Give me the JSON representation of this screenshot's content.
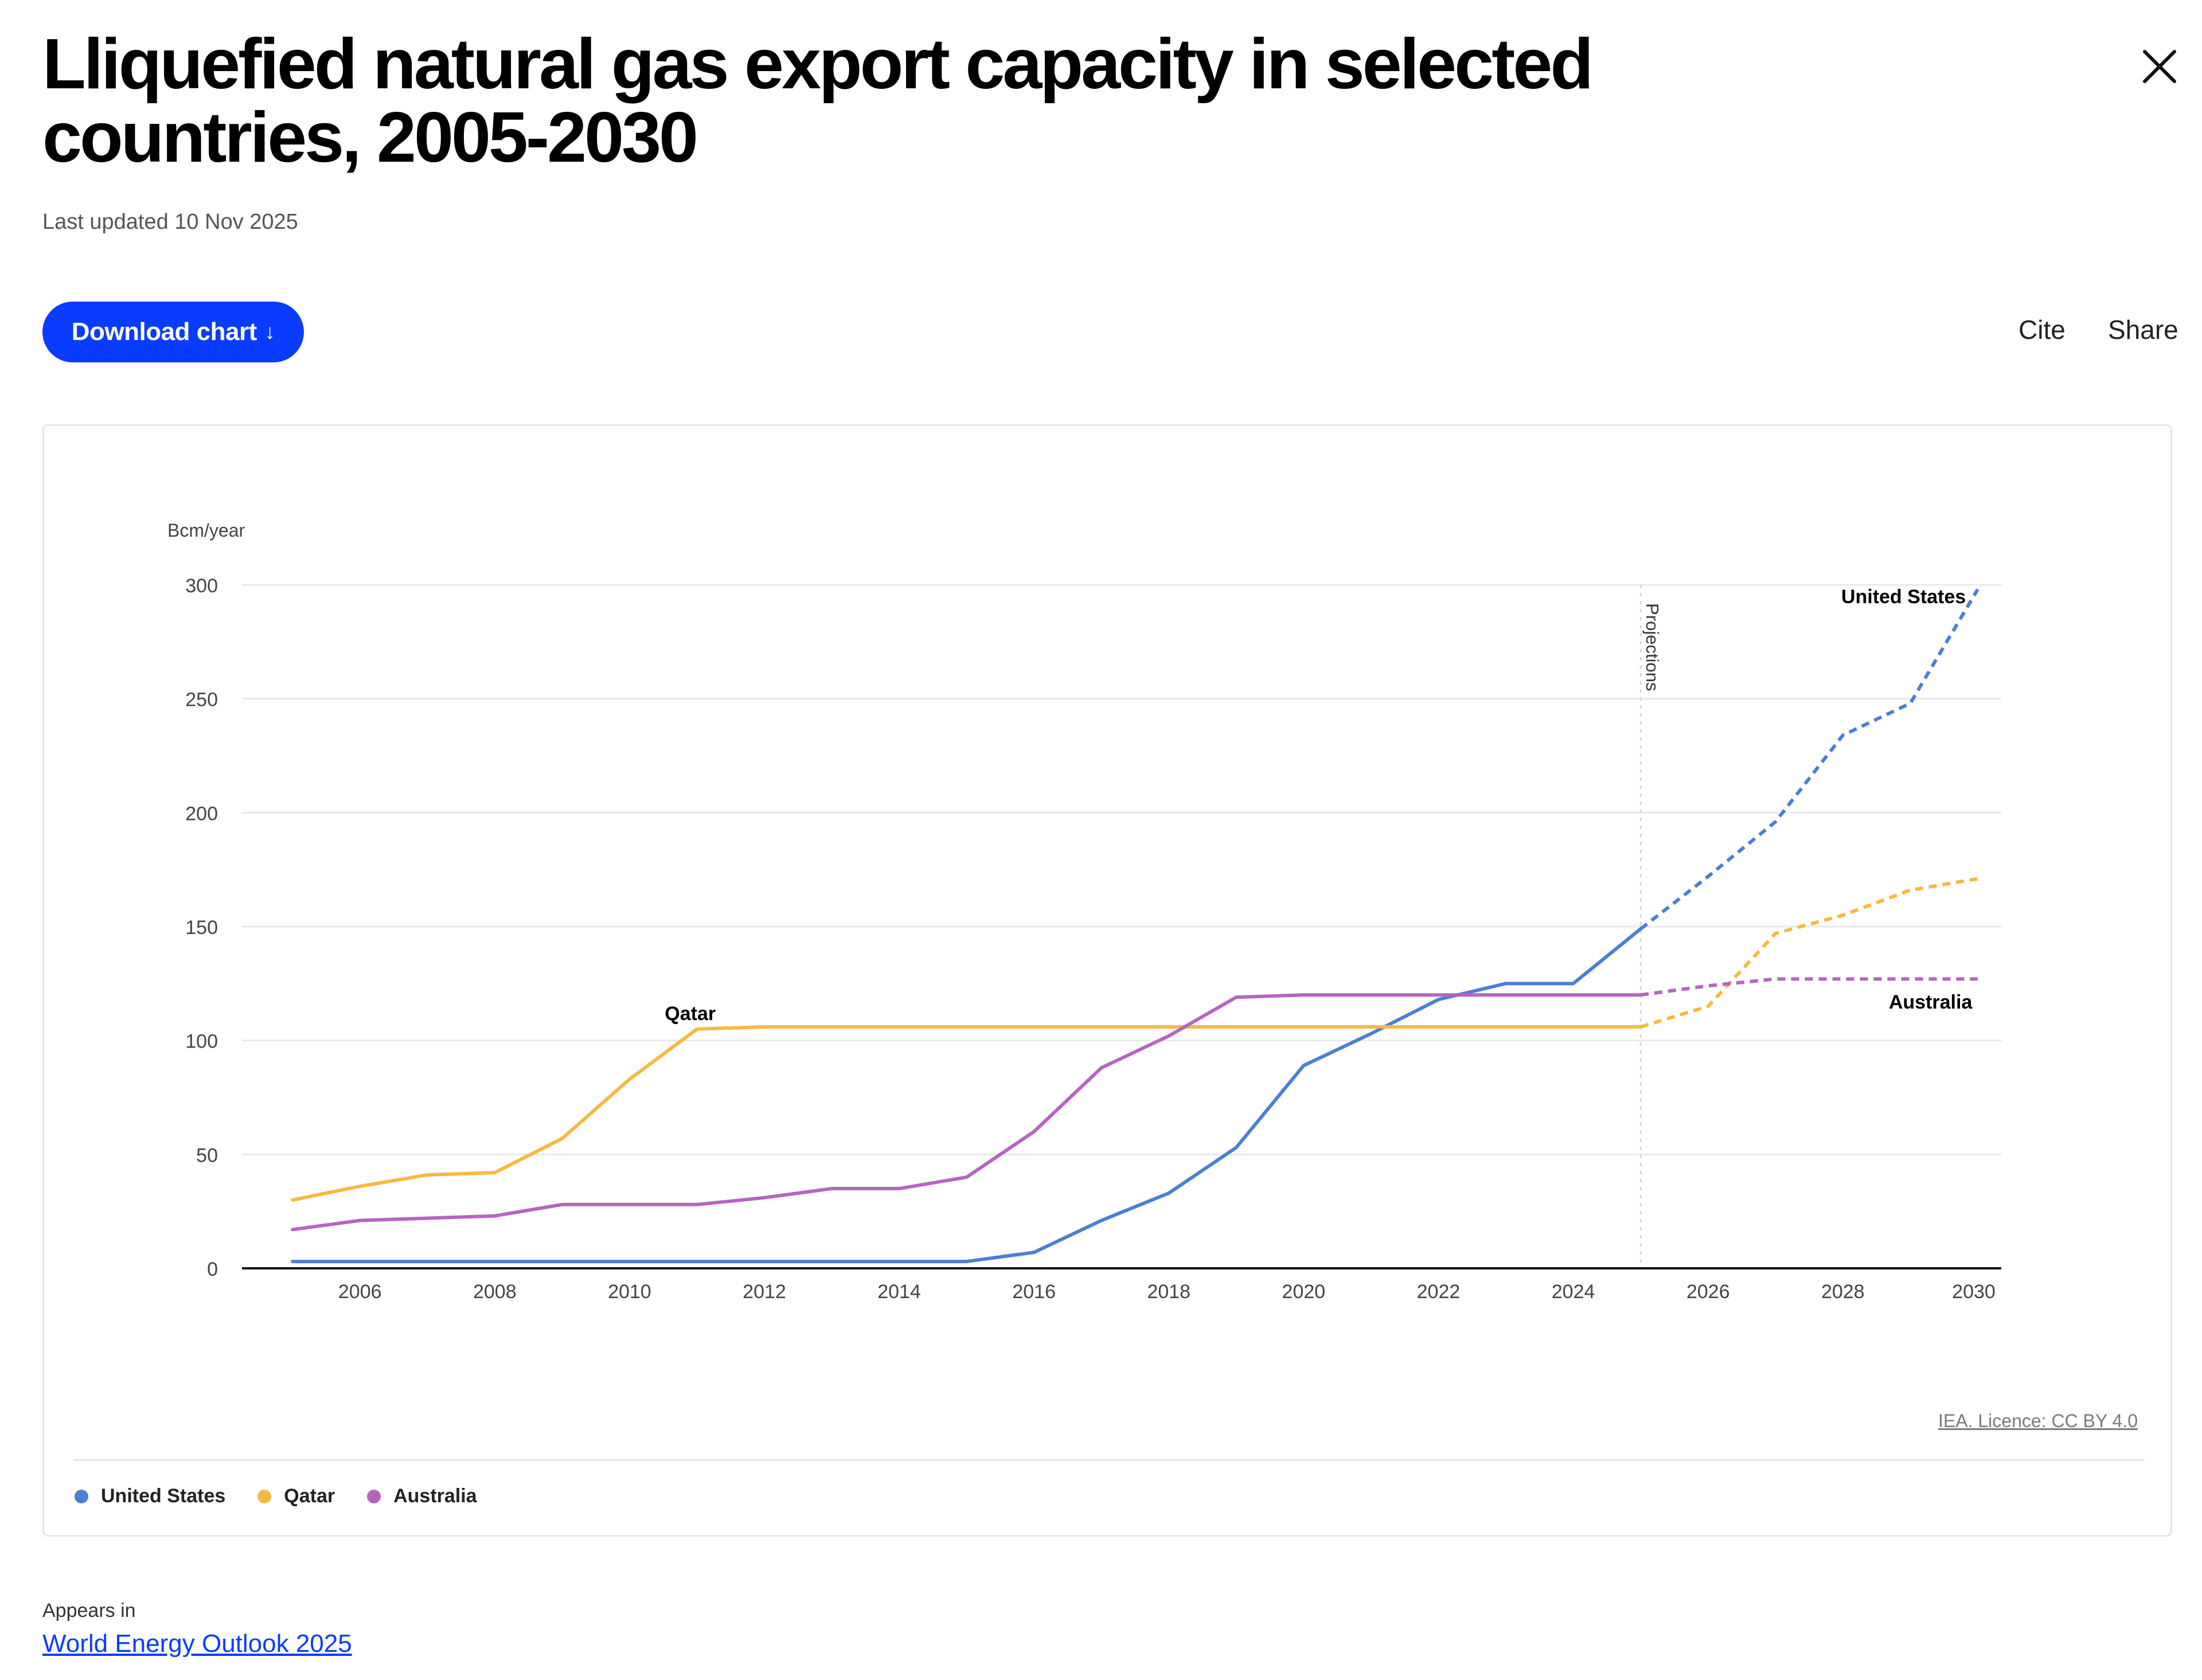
{
  "header": {
    "title": "Lliquefied natural gas export capacity in selected countries, 2005-2030",
    "last_updated": "Last updated 10 Nov 2025",
    "close_icon": "close-icon"
  },
  "toolbar": {
    "download_label": "Download chart",
    "download_icon": "arrow-down-icon",
    "cite_label": "Cite",
    "share_label": "Share",
    "accent_color": "#0a3cff"
  },
  "chart_data": {
    "type": "line",
    "ylabel": "Bcm/year",
    "ylim": [
      0,
      300
    ],
    "yticks": [
      "0",
      "50",
      "100",
      "150",
      "200",
      "250",
      "300"
    ],
    "xlim": [
      2004.25,
      2030.35
    ],
    "xticks": [
      "2006",
      "2008",
      "2010",
      "2012",
      "2014",
      "2016",
      "2018",
      "2020",
      "2022",
      "2024",
      "2026",
      "2028",
      "2030"
    ],
    "projection_start": 2025,
    "projection_label": "Projections",
    "grid": true,
    "legend_position": "bottom",
    "x": [
      2005,
      2006,
      2007,
      2008,
      2009,
      2010,
      2011,
      2012,
      2013,
      2014,
      2015,
      2016,
      2017,
      2018,
      2019,
      2020,
      2021,
      2022,
      2023,
      2024,
      2025,
      2026,
      2027,
      2028,
      2029,
      2030
    ],
    "series": [
      {
        "name": "United States",
        "color": "#4a7fd4",
        "label_year": 2028.9,
        "label_value": 292,
        "values": [
          3,
          3,
          3,
          3,
          3,
          3,
          3,
          3,
          3,
          3,
          3,
          7,
          21,
          33,
          53,
          89,
          103,
          118,
          125,
          125,
          149,
          172,
          196,
          234,
          248,
          298
        ]
      },
      {
        "name": "Qatar",
        "color": "#f5b942",
        "label_year": 2010.9,
        "label_value": 109,
        "values": [
          30,
          36,
          41,
          42,
          57,
          83,
          105,
          106,
          106,
          106,
          106,
          106,
          106,
          106,
          106,
          106,
          106,
          106,
          106,
          106,
          106,
          115,
          147,
          155,
          166,
          171
        ]
      },
      {
        "name": "Australia",
        "color": "#b565c0",
        "label_year": 2029.3,
        "label_value": 114,
        "values": [
          17,
          21,
          22,
          23,
          28,
          28,
          28,
          31,
          35,
          35,
          40,
          60,
          88,
          102,
          119,
          120,
          120,
          120,
          120,
          120,
          120,
          124,
          127,
          127,
          127,
          127
        ]
      }
    ]
  },
  "footer": {
    "licence": "IEA. Licence: CC BY 4.0",
    "appears_in_label": "Appears in",
    "appears_in_link": "World Energy Outlook 2025"
  }
}
